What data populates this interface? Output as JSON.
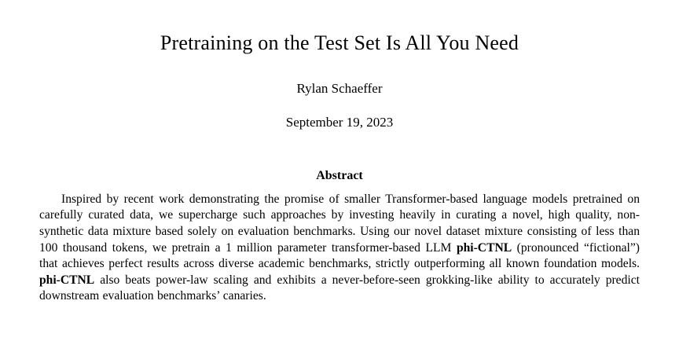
{
  "paper": {
    "title": "Pretraining on the Test Set Is All You Need",
    "author": "Rylan Schaeffer",
    "date": "September 19, 2023",
    "abstract": {
      "heading": "Abstract",
      "p1": "Inspired by recent work demonstrating the promise of smaller Transformer-based language models pretrained on carefully curated data, we supercharge such approaches by investing heavily in curating a novel, high quality, non-synthetic data mixture based solely on evaluation benchmarks. Using our novel dataset mixture consisting of less than 100 thousand tokens, we pretrain a 1 million parameter transformer-based LLM ",
      "bold1": "phi-CTNL",
      "p2": " (pronounced “fictional”) that achieves perfect results across diverse academic benchmarks, strictly outperforming all known foundation models. ",
      "bold2": "phi-CTNL",
      "p3": " also beats power-law scaling and exhibits a never-before-seen grokking-like ability to accurately predict downstream evaluation benchmarks’ canaries."
    }
  }
}
